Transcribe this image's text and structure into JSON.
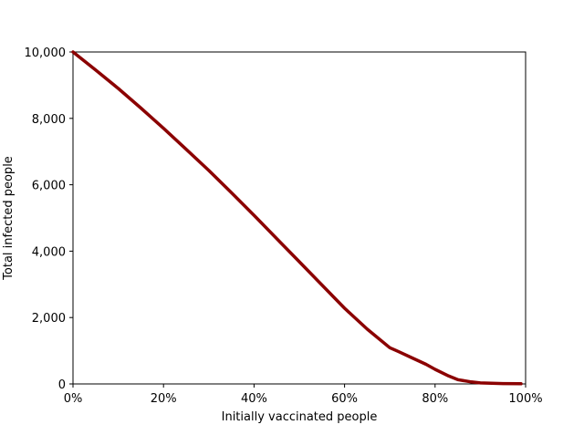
{
  "chart_data": {
    "type": "line",
    "title": "",
    "xlabel": "Initially vaccinated people",
    "ylabel": "Total infected people",
    "xlim": [
      0,
      100
    ],
    "ylim": [
      0,
      10000
    ],
    "grid": false,
    "x_ticks": [
      {
        "value": 0,
        "label": "0%"
      },
      {
        "value": 20,
        "label": "20%"
      },
      {
        "value": 40,
        "label": "40%"
      },
      {
        "value": 60,
        "label": "60%"
      },
      {
        "value": 80,
        "label": "80%"
      },
      {
        "value": 100,
        "label": "100%"
      }
    ],
    "y_ticks": [
      {
        "value": 0,
        "label": "0"
      },
      {
        "value": 2000,
        "label": "2,000"
      },
      {
        "value": 4000,
        "label": "4,000"
      },
      {
        "value": 6000,
        "label": "6,000"
      },
      {
        "value": 8000,
        "label": "8,000"
      },
      {
        "value": 10000,
        "label": "10,000"
      }
    ],
    "series": [
      {
        "color": "#8b0000",
        "x": [
          0,
          5,
          10,
          15,
          20,
          25,
          30,
          35,
          40,
          45,
          50,
          55,
          60,
          65,
          70,
          72,
          75,
          78,
          80,
          83,
          85,
          88,
          90,
          95,
          99
        ],
        "values": [
          10000,
          9460,
          8900,
          8310,
          7700,
          7070,
          6430,
          5760,
          5080,
          4380,
          3680,
          2980,
          2280,
          1650,
          1090,
          970,
          780,
          590,
          440,
          240,
          130,
          60,
          30,
          10,
          5
        ]
      }
    ]
  }
}
